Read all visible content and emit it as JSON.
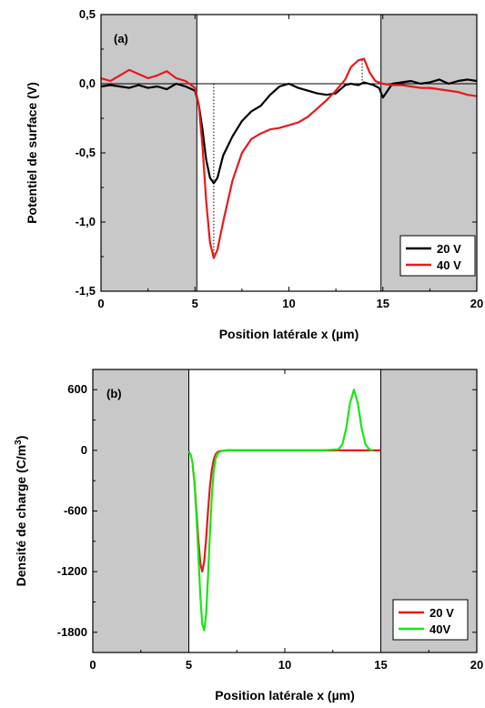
{
  "chart_data": [
    {
      "type": "line",
      "panel_label": "(a)",
      "xlabel": "Position latérale x (µm)",
      "ylabel": "Potentiel de surface (V)",
      "xlim": [
        0,
        20
      ],
      "ylim": [
        -1.5,
        0.5
      ],
      "x_ticks": [
        0,
        5,
        10,
        15,
        20
      ],
      "x_tick_labels": [
        "0",
        "5",
        "10",
        "15",
        "20"
      ],
      "y_ticks": [
        -1.5,
        -1.0,
        -0.5,
        0.0,
        0.5
      ],
      "y_tick_labels": [
        "-1,5",
        "-1,0",
        "-0,5",
        "0,0",
        "0,5"
      ],
      "shaded_regions": [
        [
          0,
          5.1
        ],
        [
          14.9,
          20
        ]
      ],
      "zero_line": true,
      "dotted_markers": [
        6.0,
        13.9
      ],
      "legend_position": "bottom-right",
      "series": [
        {
          "name": "20 V",
          "color": "#000000",
          "x": [
            0.0,
            0.5,
            1.0,
            1.5,
            2.0,
            2.5,
            3.0,
            3.5,
            4.0,
            4.5,
            5.0,
            5.2,
            5.4,
            5.6,
            5.8,
            6.0,
            6.2,
            6.5,
            7.0,
            7.5,
            8.0,
            8.5,
            9.0,
            9.5,
            10.0,
            10.5,
            11.0,
            11.5,
            12.0,
            12.5,
            13.0,
            13.3,
            13.7,
            14.0,
            14.5,
            14.8,
            15.0,
            15.5,
            16.0,
            16.5,
            17.0,
            17.5,
            18.0,
            18.5,
            19.0,
            19.5,
            20.0
          ],
          "y": [
            -0.02,
            -0.01,
            -0.02,
            -0.03,
            -0.01,
            -0.03,
            -0.02,
            -0.04,
            0.0,
            -0.02,
            -0.05,
            -0.15,
            -0.33,
            -0.55,
            -0.68,
            -0.72,
            -0.68,
            -0.52,
            -0.38,
            -0.27,
            -0.2,
            -0.16,
            -0.08,
            -0.02,
            0.0,
            -0.03,
            -0.05,
            -0.07,
            -0.08,
            -0.07,
            -0.01,
            0.0,
            -0.01,
            0.01,
            -0.01,
            -0.03,
            -0.1,
            0.0,
            0.01,
            0.02,
            0.0,
            0.01,
            0.03,
            0.0,
            0.02,
            0.03,
            0.02
          ]
        },
        {
          "name": "40 V",
          "color": "#e8191b",
          "x": [
            0.0,
            0.5,
            1.0,
            1.5,
            2.0,
            2.5,
            3.0,
            3.5,
            4.0,
            4.5,
            5.0,
            5.2,
            5.4,
            5.6,
            5.8,
            6.0,
            6.2,
            6.5,
            7.0,
            7.5,
            8.0,
            8.5,
            9.0,
            9.5,
            10.0,
            10.5,
            11.0,
            11.5,
            12.0,
            12.5,
            13.0,
            13.3,
            13.7,
            14.0,
            14.3,
            14.6,
            15.0,
            15.5,
            16.0,
            16.5,
            17.0,
            17.5,
            18.0,
            18.5,
            19.0,
            19.5,
            20.0
          ],
          "y": [
            0.04,
            0.02,
            0.06,
            0.1,
            0.07,
            0.04,
            0.06,
            0.09,
            0.04,
            0.02,
            -0.03,
            -0.15,
            -0.45,
            -0.85,
            -1.15,
            -1.26,
            -1.2,
            -1.0,
            -0.7,
            -0.5,
            -0.4,
            -0.36,
            -0.33,
            -0.32,
            -0.3,
            -0.28,
            -0.24,
            -0.18,
            -0.12,
            -0.05,
            0.03,
            0.12,
            0.17,
            0.18,
            0.08,
            0.02,
            0.0,
            -0.01,
            -0.01,
            -0.02,
            -0.03,
            -0.03,
            -0.04,
            -0.05,
            -0.06,
            -0.08,
            -0.09
          ]
        }
      ]
    },
    {
      "type": "line",
      "panel_label": "(b)",
      "xlabel": "Position latérale x (µm)",
      "ylabel": "Densité de charge (C/m",
      "ylabel_superscript": "3",
      "ylabel_suffix": ")",
      "xlim": [
        0,
        20
      ],
      "ylim": [
        -2000,
        800
      ],
      "x_ticks": [
        0,
        5,
        10,
        15,
        20
      ],
      "x_tick_labels": [
        "0",
        "5",
        "10",
        "15",
        "20"
      ],
      "y_ticks": [
        -1800,
        -1200,
        -600,
        0,
        600
      ],
      "y_tick_labels": [
        "-1800",
        "-1200",
        "-600",
        "0",
        "600"
      ],
      "shaded_regions": [
        [
          0,
          5.0
        ],
        [
          15.0,
          20
        ]
      ],
      "legend_position": "bottom-right",
      "series": [
        {
          "name": "20 V",
          "color": "#e8191b",
          "x": [
            5.2,
            5.3,
            5.4,
            5.5,
            5.6,
            5.7,
            5.8,
            5.9,
            6.0,
            6.1,
            6.2,
            6.3,
            6.4,
            6.5,
            6.7,
            7.0,
            8.0,
            10.0,
            12.0,
            14.0,
            15.0
          ],
          "y": [
            -150,
            -320,
            -600,
            -900,
            -1120,
            -1200,
            -1100,
            -880,
            -600,
            -360,
            -190,
            -90,
            -40,
            -15,
            -4,
            0,
            0,
            0,
            0,
            0,
            0
          ]
        },
        {
          "name": "40V",
          "color": "#19e619",
          "x": [
            5.0,
            5.1,
            5.2,
            5.3,
            5.4,
            5.5,
            5.6,
            5.7,
            5.8,
            5.9,
            6.0,
            6.1,
            6.2,
            6.3,
            6.4,
            6.5,
            6.7,
            7.0,
            8.0,
            10.0,
            12.0,
            12.8,
            13.0,
            13.2,
            13.4,
            13.6,
            13.8,
            14.0,
            14.2,
            14.4,
            14.6
          ],
          "y": [
            -10,
            -40,
            -130,
            -330,
            -650,
            -1050,
            -1450,
            -1720,
            -1780,
            -1620,
            -1250,
            -820,
            -450,
            -200,
            -80,
            -30,
            -6,
            0,
            0,
            0,
            0,
            10,
            60,
            220,
            470,
            600,
            470,
            220,
            60,
            10,
            0
          ]
        }
      ]
    }
  ]
}
